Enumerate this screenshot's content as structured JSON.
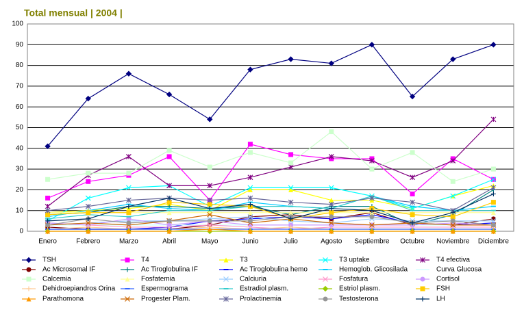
{
  "chart_data": {
    "type": "line",
    "title": "Total mensual | 2004 |",
    "categories": [
      "Enero",
      "Febrero",
      "Marzo",
      "Abril",
      "Mayo",
      "Junio",
      "Julio",
      "Agosto",
      "Septiembre",
      "Octubre",
      "Noviembre",
      "Diciembre"
    ],
    "ylim": [
      0,
      100
    ],
    "yticks": [
      0,
      10,
      20,
      30,
      40,
      50,
      60,
      70,
      80,
      90,
      100
    ],
    "grid": true,
    "series": [
      {
        "name": "TSH",
        "color": "#000080",
        "marker": "diamond",
        "values": [
          41,
          64,
          76,
          66,
          54,
          78,
          83,
          81,
          90,
          65,
          83,
          90
        ]
      },
      {
        "name": "T4",
        "color": "#ff00ff",
        "marker": "square",
        "values": [
          16,
          24,
          27,
          36,
          15,
          42,
          37,
          35,
          35,
          18,
          35,
          25
        ]
      },
      {
        "name": "T3",
        "color": "#ffff00",
        "marker": "triangle",
        "values": [
          9,
          10,
          11,
          13,
          10,
          20,
          20,
          15,
          15,
          11,
          17,
          22
        ]
      },
      {
        "name": "T3 uptake",
        "color": "#00ffff",
        "marker": "x",
        "values": [
          5,
          16,
          21,
          22,
          12,
          21,
          21,
          21,
          17,
          11,
          17,
          25
        ]
      },
      {
        "name": "T4 efectiva",
        "color": "#800080",
        "marker": "star",
        "values": [
          12,
          27,
          36,
          22,
          22,
          26,
          31,
          36,
          34,
          26,
          34,
          54
        ]
      },
      {
        "name": "Ac Microsomal IF",
        "color": "#800000",
        "marker": "circle",
        "values": [
          2,
          1,
          1,
          1,
          3,
          7,
          8,
          6,
          9,
          3,
          3,
          6
        ]
      },
      {
        "name": "Ac Tiroglobulina IF",
        "color": "#008080",
        "marker": "plus",
        "values": [
          8,
          9,
          12,
          12,
          11,
          12,
          8,
          12,
          12,
          3,
          8,
          20
        ]
      },
      {
        "name": "Ac Tiroglobulina hemo",
        "color": "#0000ff",
        "marker": "dash",
        "values": [
          1,
          1,
          1,
          2,
          5,
          6,
          7,
          6,
          8,
          4,
          3,
          4
        ]
      },
      {
        "name": "Hemoglob. Glicosilada",
        "color": "#00ccff",
        "marker": "dash",
        "values": [
          7,
          10,
          13,
          11,
          10,
          14,
          12,
          11,
          17,
          12,
          10,
          12
        ]
      },
      {
        "name": "Curva Glucosa",
        "color": "#ccffff",
        "marker": "none",
        "values": [
          3,
          3,
          3,
          3,
          3,
          3,
          3,
          3,
          3,
          3,
          3,
          3
        ]
      },
      {
        "name": "Calcemia",
        "color": "#ccffcc",
        "marker": "square",
        "values": [
          25,
          28,
          28,
          39,
          31,
          38,
          33,
          48,
          30,
          38,
          24,
          30
        ]
      },
      {
        "name": "Fosfatemia",
        "color": "#ffff99",
        "marker": "triangle",
        "values": [
          9,
          9,
          9,
          9,
          9,
          9,
          9,
          9,
          9,
          9,
          9,
          9
        ]
      },
      {
        "name": "Calciuria",
        "color": "#99ccff",
        "marker": "x",
        "values": [
          3,
          4,
          5,
          5,
          6,
          7,
          5,
          4,
          6,
          5,
          5,
          5
        ]
      },
      {
        "name": "Fosfatura",
        "color": "#ff99cc",
        "marker": "x",
        "values": [
          4,
          3,
          2,
          2,
          3,
          2,
          1,
          2,
          2,
          2,
          2,
          2
        ]
      },
      {
        "name": "Cortisol",
        "color": "#cc99ff",
        "marker": "circle",
        "values": [
          4,
          3,
          6,
          3,
          5,
          3,
          3,
          3,
          3,
          3,
          4,
          3
        ]
      },
      {
        "name": "Dehidroepiandros Orina",
        "color": "#ffcc99",
        "marker": "plus",
        "values": [
          1,
          2,
          1,
          1,
          2,
          1,
          2,
          1,
          1,
          1,
          1,
          1
        ]
      },
      {
        "name": "Espermograma",
        "color": "#3366ff",
        "marker": "dash",
        "values": [
          1,
          1,
          1,
          1,
          1,
          1,
          1,
          1,
          1,
          1,
          1,
          1
        ]
      },
      {
        "name": "Estradiol plasm.",
        "color": "#33cccc",
        "marker": "dash",
        "values": [
          6,
          8,
          7,
          10,
          10,
          12,
          12,
          11,
          17,
          10,
          10,
          10
        ]
      },
      {
        "name": "Estriol plasm.",
        "color": "#99cc00",
        "marker": "diamond",
        "values": [
          0,
          0,
          0,
          0,
          0,
          0,
          0,
          0,
          0,
          0,
          0,
          0
        ]
      },
      {
        "name": "FSH",
        "color": "#ffcc00",
        "marker": "square",
        "values": [
          8,
          9,
          9,
          14,
          13,
          12,
          6,
          9,
          11,
          8,
          7,
          14
        ]
      },
      {
        "name": "Parathomona",
        "color": "#ff9900",
        "marker": "triangle",
        "values": [
          0,
          0,
          0,
          0,
          1,
          0,
          0,
          0,
          0,
          0,
          0,
          0
        ]
      },
      {
        "name": "Progester Plam.",
        "color": "#cc6600",
        "marker": "x",
        "values": [
          3,
          4,
          3,
          5,
          8,
          4,
          6,
          4,
          3,
          4,
          3,
          3
        ]
      },
      {
        "name": "Prolactinemia",
        "color": "#666699",
        "marker": "star",
        "values": [
          10,
          12,
          15,
          16,
          15,
          16,
          14,
          13,
          16,
          14,
          10,
          21
        ]
      },
      {
        "name": "Testosterona",
        "color": "#969696",
        "marker": "circle",
        "values": [
          3,
          6,
          4,
          5,
          5,
          5,
          7,
          7,
          7,
          4,
          5,
          3
        ]
      },
      {
        "name": "LH",
        "color": "#003366",
        "marker": "plus",
        "values": [
          5,
          6,
          12,
          16,
          11,
          13,
          6,
          11,
          10,
          4,
          9,
          18
        ]
      }
    ]
  }
}
